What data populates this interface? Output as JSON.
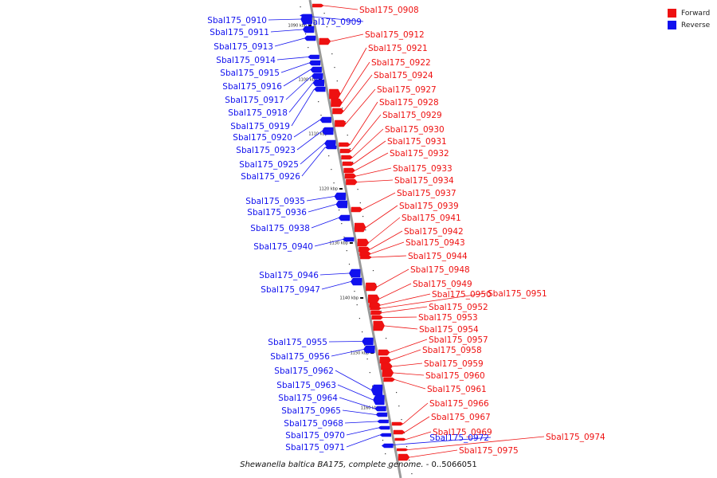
{
  "colors": {
    "forward": "#ee1111",
    "reverse": "#1111ee",
    "backbone": "#999999"
  },
  "legend": [
    {
      "label": "Forward",
      "strand": "forward"
    },
    {
      "label": "Reverse",
      "strand": "reverse"
    }
  ],
  "caption": {
    "organism": "Shewanella baltica BA175, complete genome.",
    "range": " - 0..5066051"
  },
  "ticks": [
    "1090 kbp",
    "1100 kbp",
    "1110 kbp",
    "1120 kbp",
    "1130 kbp",
    "1140 kbp",
    "1150 kbp",
    "1160 kbp"
  ],
  "genes": [
    {
      "name": "Sbal175_0908",
      "strand": "forward"
    },
    {
      "name": "Sbal175_0909",
      "strand": "reverse"
    },
    {
      "name": "Sbal175_0910",
      "strand": "reverse"
    },
    {
      "name": "Sbal175_0911",
      "strand": "reverse"
    },
    {
      "name": "Sbal175_0912",
      "strand": "forward"
    },
    {
      "name": "Sbal175_0913",
      "strand": "reverse"
    },
    {
      "name": "Sbal175_0914",
      "strand": "reverse"
    },
    {
      "name": "Sbal175_0915",
      "strand": "reverse"
    },
    {
      "name": "Sbal175_0916",
      "strand": "reverse"
    },
    {
      "name": "Sbal175_0917",
      "strand": "reverse"
    },
    {
      "name": "Sbal175_0918",
      "strand": "reverse"
    },
    {
      "name": "Sbal175_0919",
      "strand": "reverse"
    },
    {
      "name": "Sbal175_0920",
      "strand": "reverse"
    },
    {
      "name": "Sbal175_0921",
      "strand": "forward"
    },
    {
      "name": "Sbal175_0922",
      "strand": "forward"
    },
    {
      "name": "Sbal175_0923",
      "strand": "reverse"
    },
    {
      "name": "Sbal175_0924",
      "strand": "forward"
    },
    {
      "name": "Sbal175_0925",
      "strand": "reverse"
    },
    {
      "name": "Sbal175_0926",
      "strand": "reverse"
    },
    {
      "name": "Sbal175_0927",
      "strand": "forward"
    },
    {
      "name": "Sbal175_0928",
      "strand": "forward"
    },
    {
      "name": "Sbal175_0929",
      "strand": "forward"
    },
    {
      "name": "Sbal175_0930",
      "strand": "forward"
    },
    {
      "name": "Sbal175_0931",
      "strand": "forward"
    },
    {
      "name": "Sbal175_0932",
      "strand": "forward"
    },
    {
      "name": "Sbal175_0933",
      "strand": "forward"
    },
    {
      "name": "Sbal175_0934",
      "strand": "forward"
    },
    {
      "name": "Sbal175_0935",
      "strand": "reverse"
    },
    {
      "name": "Sbal175_0936",
      "strand": "reverse"
    },
    {
      "name": "Sbal175_0937",
      "strand": "forward"
    },
    {
      "name": "Sbal175_0938",
      "strand": "reverse"
    },
    {
      "name": "Sbal175_0939",
      "strand": "forward"
    },
    {
      "name": "Sbal175_0940",
      "strand": "reverse"
    },
    {
      "name": "Sbal175_0941",
      "strand": "forward"
    },
    {
      "name": "Sbal175_0942",
      "strand": "forward"
    },
    {
      "name": "Sbal175_0943",
      "strand": "forward"
    },
    {
      "name": "Sbal175_0944",
      "strand": "forward"
    },
    {
      "name": "Sbal175_0946",
      "strand": "reverse"
    },
    {
      "name": "Sbal175_0947",
      "strand": "reverse"
    },
    {
      "name": "Sbal175_0948",
      "strand": "forward"
    },
    {
      "name": "Sbal175_0949",
      "strand": "forward"
    },
    {
      "name": "Sbal175_0950",
      "strand": "forward"
    },
    {
      "name": "Sbal175_0951",
      "strand": "forward"
    },
    {
      "name": "Sbal175_0952",
      "strand": "forward"
    },
    {
      "name": "Sbal175_0953",
      "strand": "forward"
    },
    {
      "name": "Sbal175_0954",
      "strand": "forward"
    },
    {
      "name": "Sbal175_0955",
      "strand": "reverse"
    },
    {
      "name": "Sbal175_0956",
      "strand": "reverse"
    },
    {
      "name": "Sbal175_0957",
      "strand": "forward"
    },
    {
      "name": "Sbal175_0958",
      "strand": "forward"
    },
    {
      "name": "Sbal175_0959",
      "strand": "forward"
    },
    {
      "name": "Sbal175_0960",
      "strand": "forward"
    },
    {
      "name": "Sbal175_0961",
      "strand": "forward"
    },
    {
      "name": "Sbal175_0962",
      "strand": "reverse"
    },
    {
      "name": "Sbal175_0963",
      "strand": "reverse"
    },
    {
      "name": "Sbal175_0964",
      "strand": "reverse"
    },
    {
      "name": "Sbal175_0965",
      "strand": "reverse"
    },
    {
      "name": "Sbal175_0966",
      "strand": "forward"
    },
    {
      "name": "Sbal175_0967",
      "strand": "forward"
    },
    {
      "name": "Sbal175_0968",
      "strand": "reverse"
    },
    {
      "name": "Sbal175_0969",
      "strand": "forward"
    },
    {
      "name": "Sbal175_0970",
      "strand": "reverse"
    },
    {
      "name": "Sbal175_0971",
      "strand": "reverse"
    },
    {
      "name": "Sbal175_0972",
      "strand": "reverse"
    },
    {
      "name": "Sbal175_0974",
      "strand": "forward"
    },
    {
      "name": "Sbal175_0975",
      "strand": "forward"
    }
  ]
}
